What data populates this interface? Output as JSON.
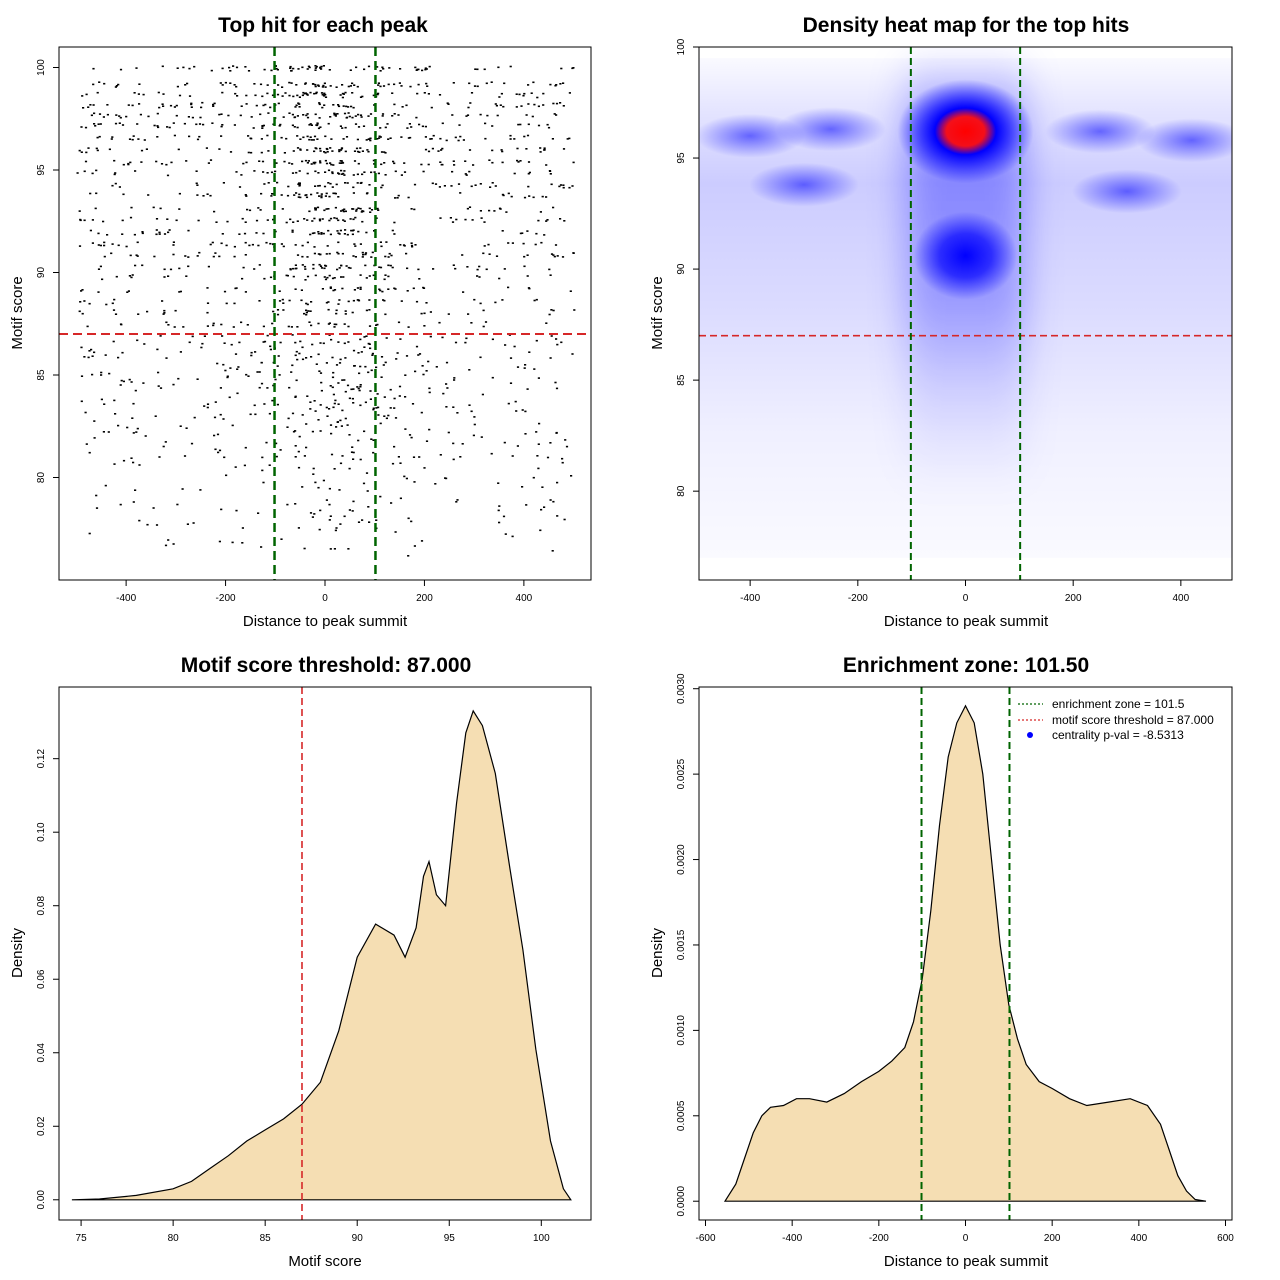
{
  "colors": {
    "threshold": "#d62728",
    "zone": "#006400",
    "fill": "#f5deb3",
    "centrality_point": "#0000ff",
    "heat_low": "#ffffff",
    "heat_mid": "#0000ff",
    "heat_high": "#ff0000"
  },
  "chart_data": [
    {
      "id": "scatter",
      "type": "scatter",
      "title": "Top hit for each peak",
      "xlabel": "Distance to peak summit",
      "ylabel": "Motif score",
      "xlim": [
        -535,
        535
      ],
      "ylim": [
        75,
        101
      ],
      "xticks": [
        -400,
        -200,
        0,
        200,
        400
      ],
      "yticks": [
        80,
        85,
        90,
        95,
        100
      ],
      "threshold_y": 87,
      "zone_x": [
        -101.5,
        101.5
      ],
      "distribution": "dense points across x from -500 to 500, concentrated near x=0 and scores 88-100; horizontal bands at discrete scores; sparse points below 87 down to about 76"
    },
    {
      "id": "heatmap",
      "type": "heatmap",
      "title": "Density heat map for the top hits",
      "xlabel": "Distance to peak summit",
      "ylabel": "Motif score",
      "xlim": [
        -495,
        495
      ],
      "ylim": [
        76,
        100
      ],
      "xticks": [
        -400,
        -200,
        0,
        200,
        400
      ],
      "yticks": [
        80,
        85,
        90,
        95,
        100
      ],
      "threshold_y": 87,
      "zone_x": [
        -101.5,
        101.5
      ],
      "hotspots": [
        {
          "x": 0,
          "y": 96.2,
          "intensity": 1.0
        },
        {
          "x": 0,
          "y": 90.6,
          "intensity": 0.55
        }
      ]
    },
    {
      "id": "score_density",
      "type": "area",
      "title": "Motif score threshold: 87.000",
      "xlabel": "Motif score",
      "ylabel": "Density",
      "xlim": [
        73.8,
        102.7
      ],
      "ylim": [
        -0.0055,
        0.1395
      ],
      "xticks": [
        75,
        80,
        85,
        90,
        95,
        100
      ],
      "yticks": [
        0.0,
        0.02,
        0.04,
        0.06,
        0.08,
        0.1,
        0.12
      ],
      "ytick_labels": [
        "0.00",
        "0.02",
        "0.04",
        "0.06",
        "0.08",
        "0.10",
        "0.12"
      ],
      "threshold_x": 87,
      "x": [
        74.5,
        76,
        78,
        80,
        81,
        82,
        83,
        84,
        85,
        86,
        87,
        88,
        89,
        90,
        91,
        92,
        92.6,
        93.2,
        93.6,
        93.9,
        94.3,
        94.8,
        95.4,
        95.9,
        96.3,
        96.8,
        97.5,
        98.3,
        99,
        99.7,
        100.5,
        101.2,
        101.6
      ],
      "y": [
        0.0,
        0.0002,
        0.0012,
        0.003,
        0.005,
        0.0085,
        0.012,
        0.016,
        0.019,
        0.022,
        0.026,
        0.032,
        0.046,
        0.066,
        0.075,
        0.072,
        0.066,
        0.074,
        0.088,
        0.092,
        0.083,
        0.08,
        0.108,
        0.127,
        0.133,
        0.129,
        0.116,
        0.09,
        0.068,
        0.041,
        0.016,
        0.003,
        0.0
      ]
    },
    {
      "id": "distance_density",
      "type": "area",
      "title": "Enrichment zone: 101.50",
      "xlabel": "Distance to peak summit",
      "ylabel": "Density",
      "xlim": [
        -615,
        615
      ],
      "ylim": [
        -0.00011,
        0.00301
      ],
      "xticks": [
        -600,
        -400,
        -200,
        0,
        200,
        400,
        600
      ],
      "yticks": [
        0.0,
        0.0005,
        0.001,
        0.0015,
        0.002,
        0.0025,
        0.003
      ],
      "ytick_labels": [
        "0.0000",
        "0.0005",
        "0.0010",
        "0.0015",
        "0.0020",
        "0.0025",
        "0.0030"
      ],
      "zone_x": [
        -101.5,
        101.5
      ],
      "x": [
        -555,
        -530,
        -510,
        -490,
        -470,
        -450,
        -420,
        -390,
        -360,
        -320,
        -280,
        -240,
        -200,
        -170,
        -140,
        -120,
        -100,
        -80,
        -60,
        -40,
        -20,
        0,
        20,
        40,
        60,
        80,
        100,
        120,
        140,
        170,
        200,
        240,
        280,
        330,
        380,
        420,
        450,
        470,
        490,
        510,
        530,
        555
      ],
      "y": [
        0.0,
        0.0001,
        0.00025,
        0.0004,
        0.0005,
        0.00055,
        0.00056,
        0.0006,
        0.0006,
        0.00058,
        0.00063,
        0.0007,
        0.00076,
        0.00082,
        0.0009,
        0.00105,
        0.0013,
        0.0017,
        0.0022,
        0.0026,
        0.0028,
        0.0029,
        0.0028,
        0.0025,
        0.002,
        0.0015,
        0.00115,
        0.00095,
        0.0008,
        0.0007,
        0.00066,
        0.0006,
        0.00056,
        0.00058,
        0.0006,
        0.00056,
        0.00045,
        0.0003,
        0.00015,
        6e-05,
        1e-05,
        0.0
      ],
      "legend": {
        "position": "top-right",
        "entries": [
          {
            "label": "enrichment zone = 101.5",
            "symbol": "dotted-line",
            "color": "#006400"
          },
          {
            "label": "motif score threshold = 87.000",
            "symbol": "dotted-line",
            "color": "#d62728"
          },
          {
            "label": "centrality p-val = -8.5313",
            "symbol": "point",
            "color": "#0000ff"
          }
        ]
      }
    }
  ]
}
